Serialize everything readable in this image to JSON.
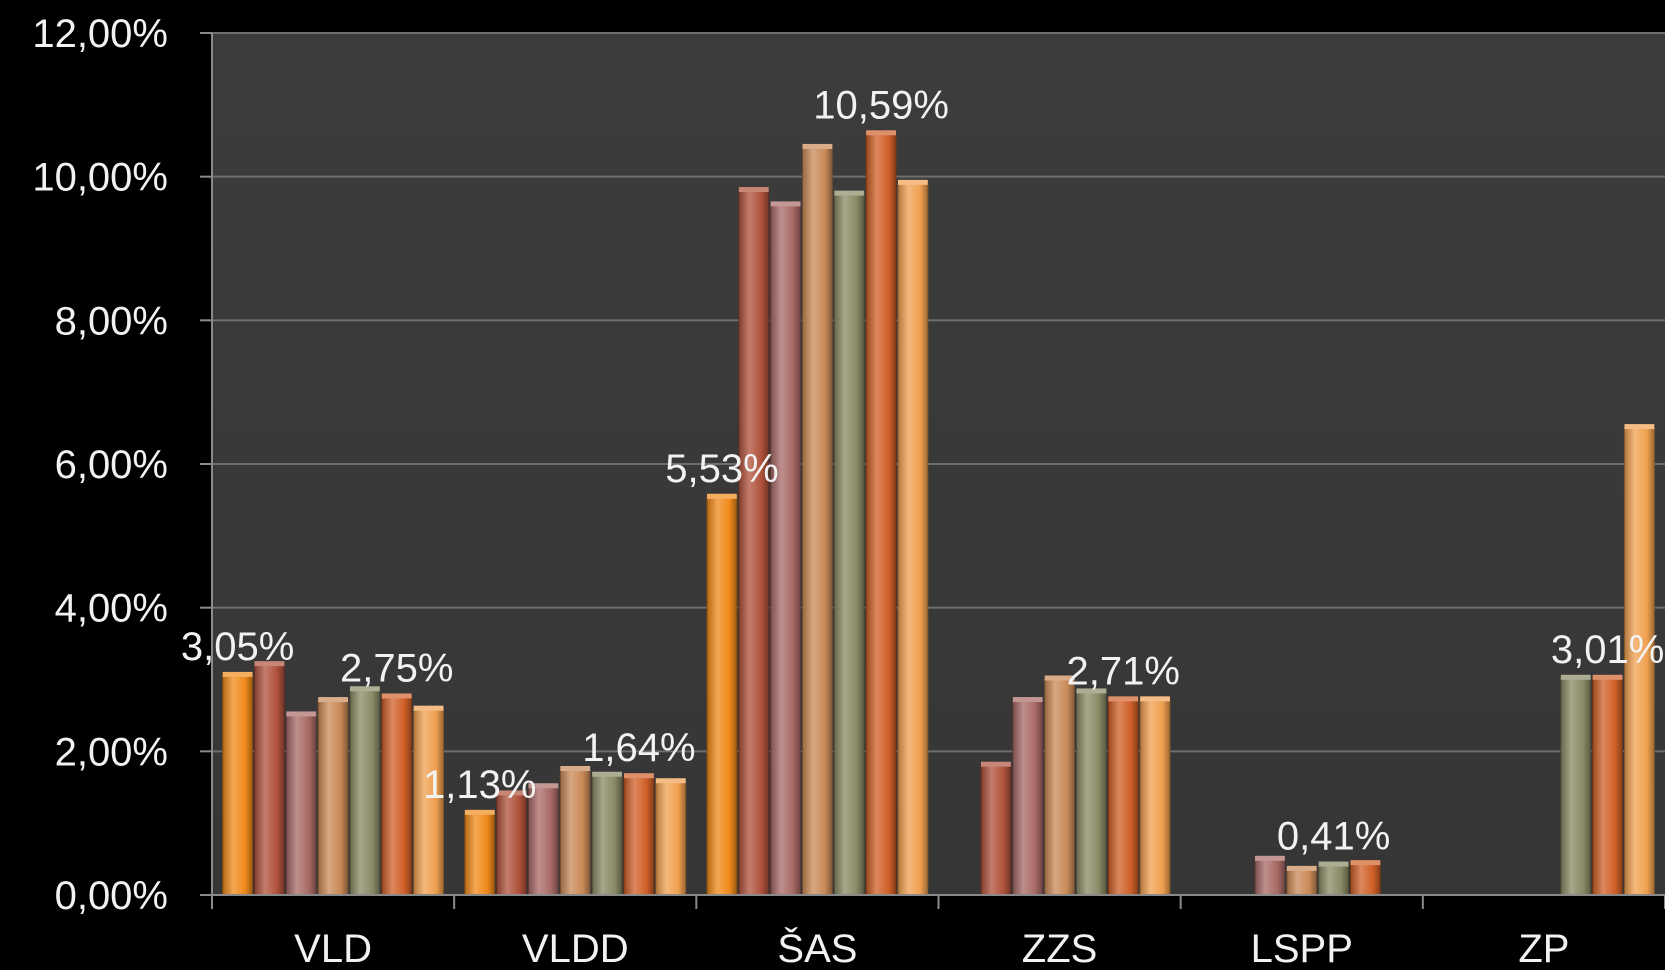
{
  "chart_data": {
    "type": "bar",
    "categories": [
      "VLD",
      "VLDD",
      "ŠAS",
      "ZZS",
      "LSPP",
      "ZP"
    ],
    "ylim": [
      0,
      12
    ],
    "y_ticks": [
      "0,00%",
      "2,00%",
      "4,00%",
      "6,00%",
      "8,00%",
      "10,00%",
      "12,00%"
    ],
    "grid": true,
    "series_colors": [
      "#f08a1a",
      "#b0523c",
      "#a86a66",
      "#c98a58",
      "#8a8a66",
      "#d06028",
      "#f0a050"
    ],
    "series": [
      {
        "values": [
          3.05,
          1.13,
          5.53,
          null,
          null,
          null
        ]
      },
      {
        "values": [
          3.2,
          1.4,
          9.8,
          1.8,
          null,
          null
        ]
      },
      {
        "values": [
          2.5,
          1.5,
          9.6,
          2.7,
          0.49,
          null
        ]
      },
      {
        "values": [
          2.7,
          1.74,
          10.4,
          3.0,
          0.35,
          null
        ]
      },
      {
        "values": [
          2.85,
          1.66,
          9.75,
          2.82,
          0.41,
          3.01
        ]
      },
      {
        "values": [
          2.75,
          1.64,
          10.59,
          2.71,
          0.43,
          3.01
        ]
      },
      {
        "values": [
          2.58,
          1.57,
          9.9,
          2.71,
          null,
          6.5
        ]
      }
    ],
    "data_labels": [
      {
        "category": 0,
        "series": 0,
        "text": "3,05%"
      },
      {
        "category": 0,
        "series": 5,
        "text": "2,75%"
      },
      {
        "category": 1,
        "series": 0,
        "text": "1,13%"
      },
      {
        "category": 1,
        "series": 5,
        "text": "1,64%"
      },
      {
        "category": 2,
        "series": 0,
        "text": "5,53%"
      },
      {
        "category": 2,
        "series": 5,
        "text": "10,59%"
      },
      {
        "category": 3,
        "series": 5,
        "text": "2,71%"
      },
      {
        "category": 4,
        "series": 4,
        "text": "0,41%"
      },
      {
        "category": 5,
        "series": 5,
        "text": "3,01%"
      }
    ]
  }
}
